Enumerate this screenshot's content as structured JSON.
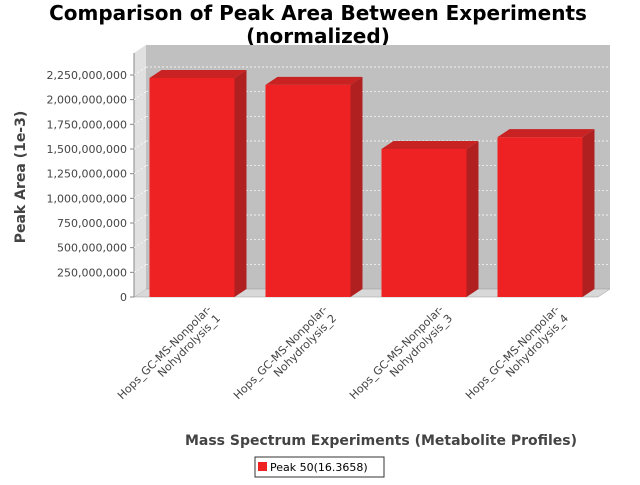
{
  "chart_data": {
    "type": "bar",
    "title": "Comparison of Peak Area Between Experiments",
    "subtitle": "(normalized)",
    "xlabel": "Mass Spectrum Experiments (Metabolite Profiles)",
    "ylabel": "Peak Area (1e-3)",
    "categories": [
      [
        "Hops_GC-MS-Nonpolar-",
        "Nohydrolysis_1"
      ],
      [
        "Hops_GC-MS-Nonpolar-",
        "Nohydrolysis_2"
      ],
      [
        "Hops_GC-MS-Nonpolar-",
        "Nohydrolysis_3"
      ],
      [
        "Hops_GC-MS-Nonpolar-",
        "Nohydrolysis_4"
      ]
    ],
    "series": [
      {
        "name": "Peak 50(16.3658)",
        "values": [
          2220000000,
          2150000000,
          1500000000,
          1620000000
        ],
        "color": "#ee2222"
      }
    ],
    "yticks": [
      "0",
      "250,000,000",
      "500,000,000",
      "750,000,000",
      "1,000,000,000",
      "1,250,000,000",
      "1,500,000,000",
      "1,750,000,000",
      "2,000,000,000",
      "2,250,000,000"
    ],
    "ylim": [
      0,
      2300000000
    ],
    "grid": true,
    "legend_position": "bottom-center",
    "colors": {
      "plot_background": "#c0c0c0",
      "bar_front": "#ee2222",
      "bar_side": "#b02020",
      "bar_top": "#c82222"
    }
  }
}
